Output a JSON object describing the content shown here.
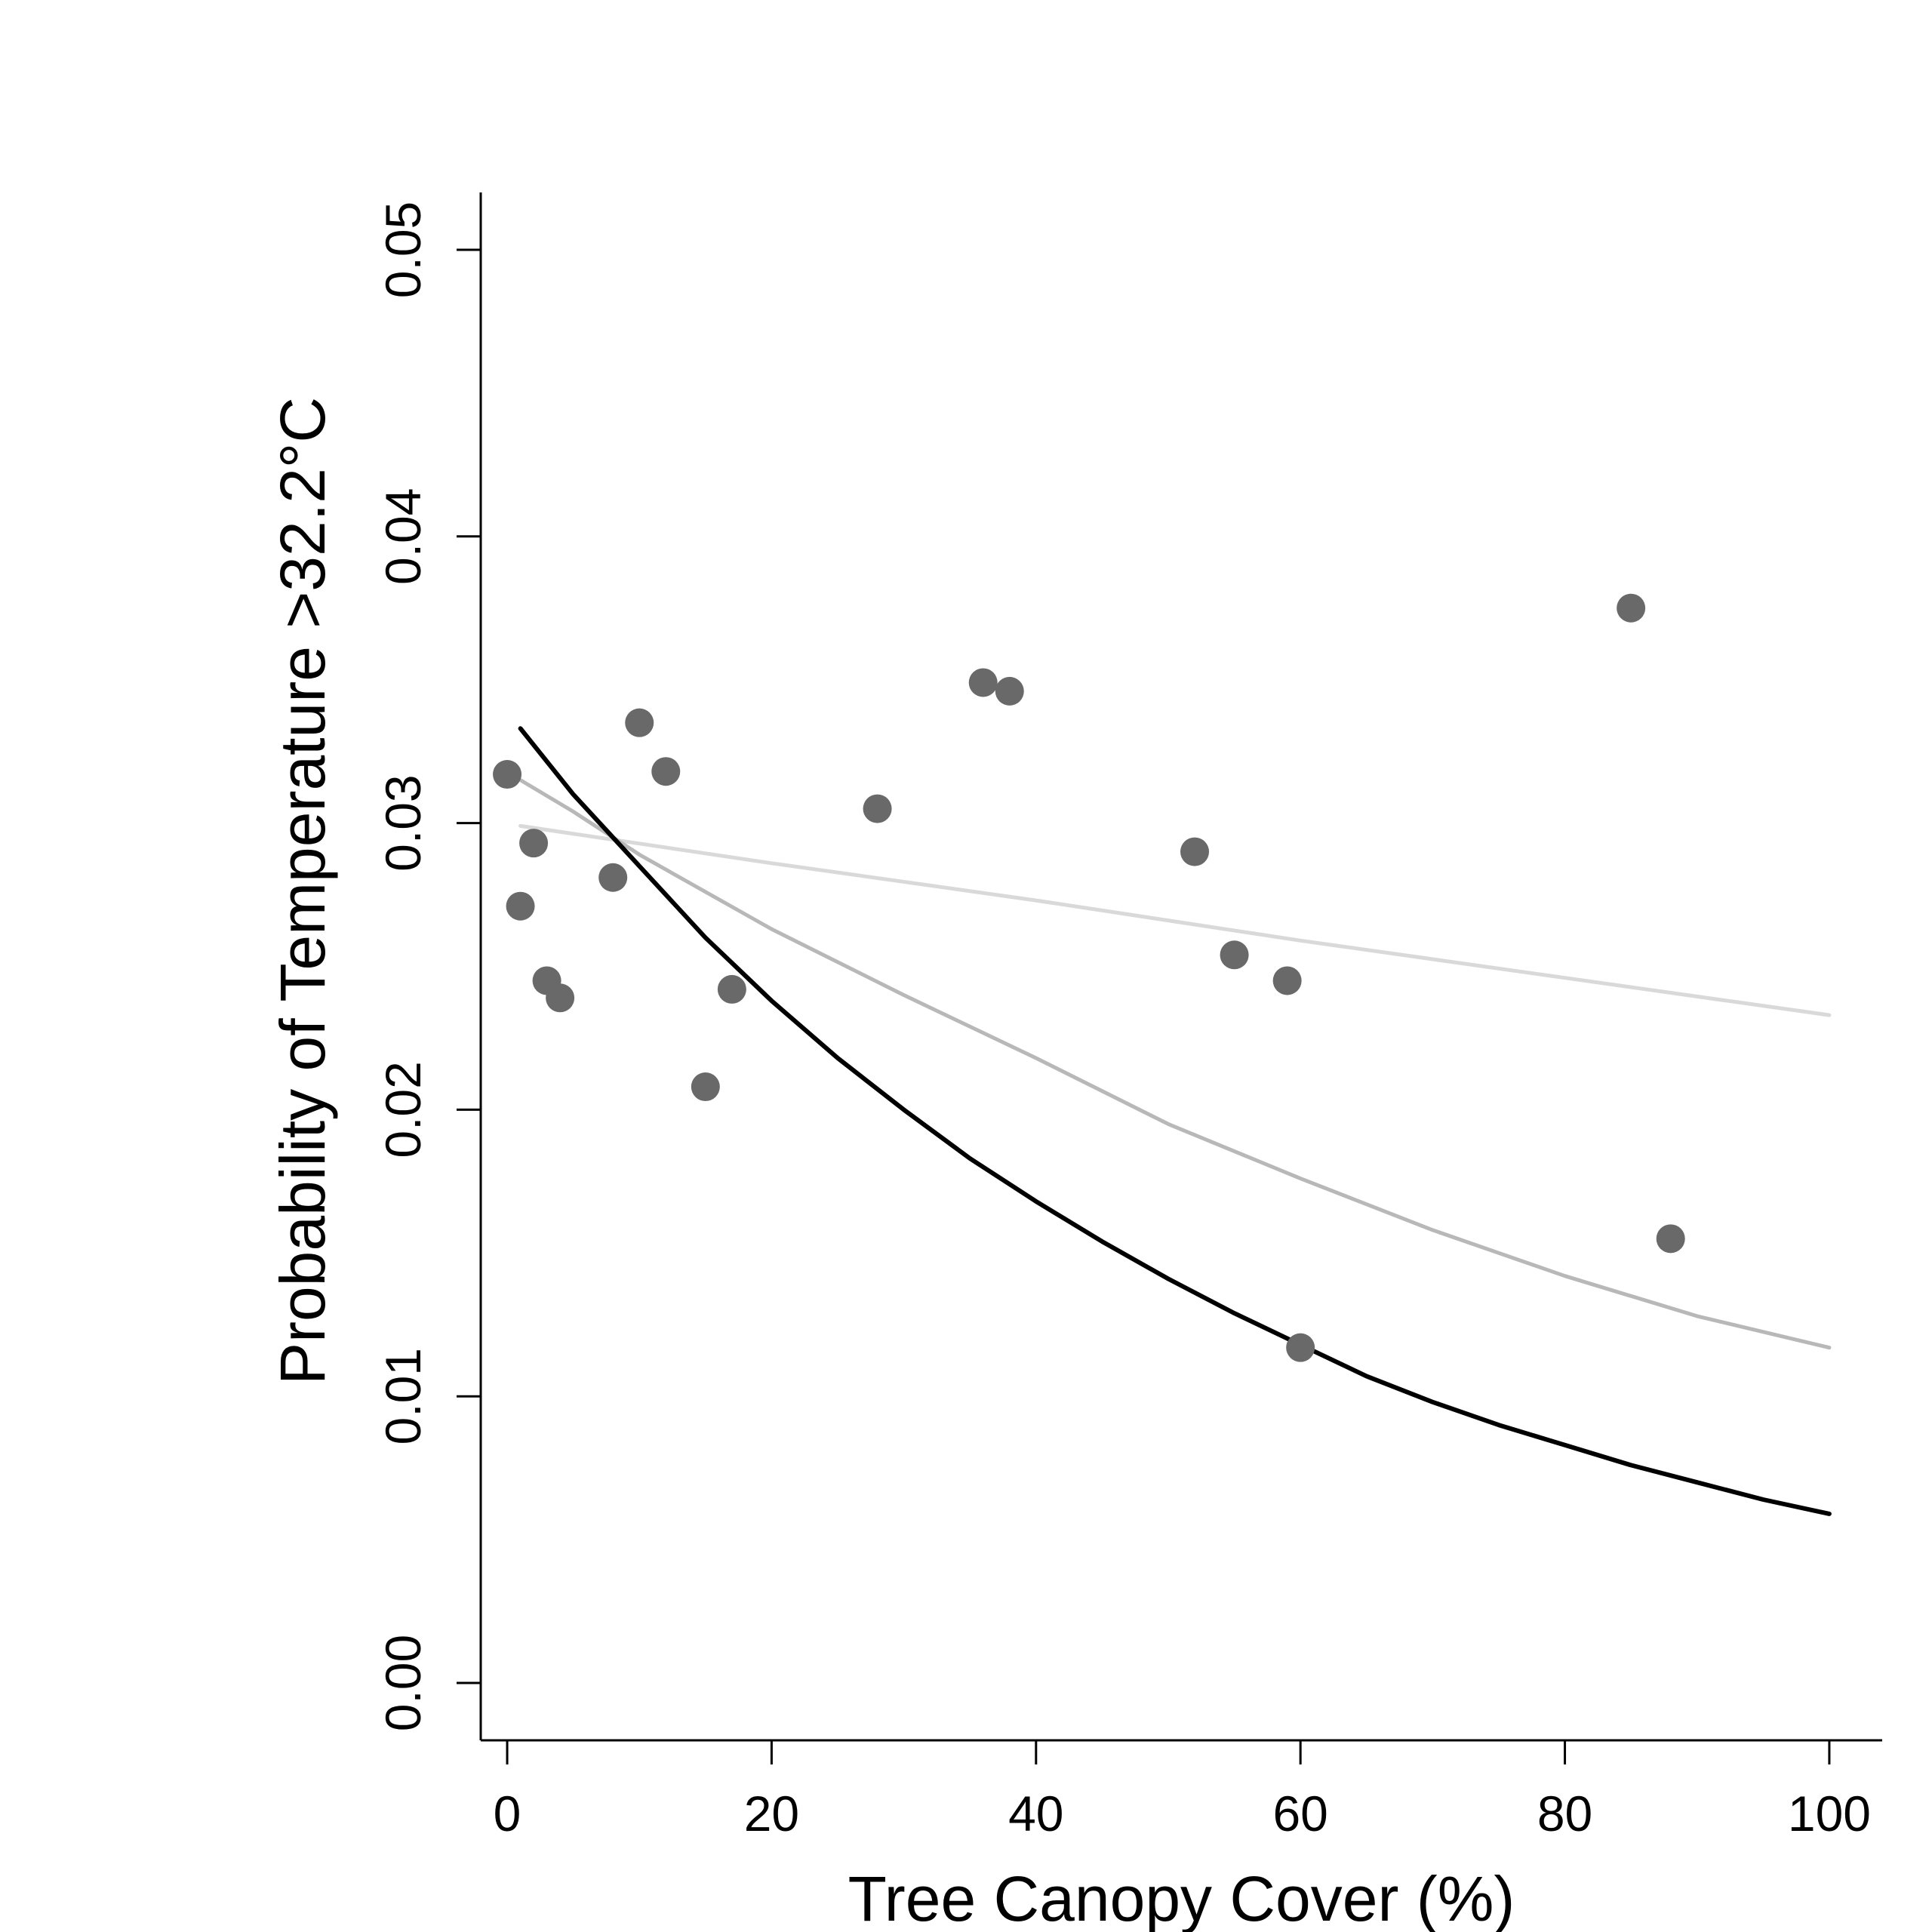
{
  "chart_data": {
    "type": "scatter",
    "xlabel": "Tree Canopy Cover (%)",
    "ylabel": "Probability of Temperature >32.2°C",
    "xlim": [
      -2,
      104
    ],
    "ylim": [
      -0.002,
      0.052
    ],
    "x_ticks": [
      0,
      20,
      40,
      60,
      80,
      100
    ],
    "x_tick_labels": [
      "0",
      "20",
      "40",
      "60",
      "80",
      "100"
    ],
    "y_ticks": [
      0.0,
      0.01,
      0.02,
      0.03,
      0.04,
      0.05
    ],
    "y_tick_labels": [
      "0.00",
      "0.01",
      "0.02",
      "0.03",
      "0.04",
      "0.05"
    ],
    "grid": false,
    "points": {
      "color": "#696969",
      "x": [
        0,
        1,
        2,
        3,
        4,
        8,
        10,
        12,
        15,
        17,
        28,
        36,
        38,
        52,
        55,
        59,
        60,
        85,
        88
      ],
      "y": [
        0.0317,
        0.0271,
        0.0293,
        0.0245,
        0.0239,
        0.0281,
        0.0335,
        0.0318,
        0.0208,
        0.0242,
        0.0305,
        0.0349,
        0.0346,
        0.029,
        0.0254,
        0.0245,
        0.0117,
        0.0375,
        0.0155
      ]
    },
    "curves": [
      {
        "color": "#000000",
        "x": [
          1,
          5,
          10,
          15,
          20,
          25,
          30,
          35,
          40,
          45,
          50,
          55,
          60,
          65,
          70,
          75,
          80,
          85,
          90,
          95,
          100
        ],
        "y": [
          0.0333,
          0.031,
          0.0285,
          0.026,
          0.0238,
          0.0218,
          0.02,
          0.0183,
          0.0168,
          0.0154,
          0.0141,
          0.0129,
          0.0118,
          0.0107,
          0.0098,
          0.009,
          0.0083,
          0.0076,
          0.007,
          0.0064,
          0.0059
        ]
      },
      {
        "color": "#b8b8b8",
        "x": [
          1,
          5,
          10,
          20,
          30,
          40,
          50,
          60,
          70,
          80,
          90,
          100
        ],
        "y": [
          0.0315,
          0.0304,
          0.0289,
          0.0263,
          0.024,
          0.0218,
          0.0195,
          0.0176,
          0.0158,
          0.0142,
          0.0128,
          0.0117
        ]
      },
      {
        "color": "#d9d9d9",
        "x": [
          1,
          20,
          40,
          60,
          80,
          100
        ],
        "y": [
          0.0299,
          0.0286,
          0.0273,
          0.0259,
          0.0246,
          0.0233
        ]
      }
    ]
  }
}
